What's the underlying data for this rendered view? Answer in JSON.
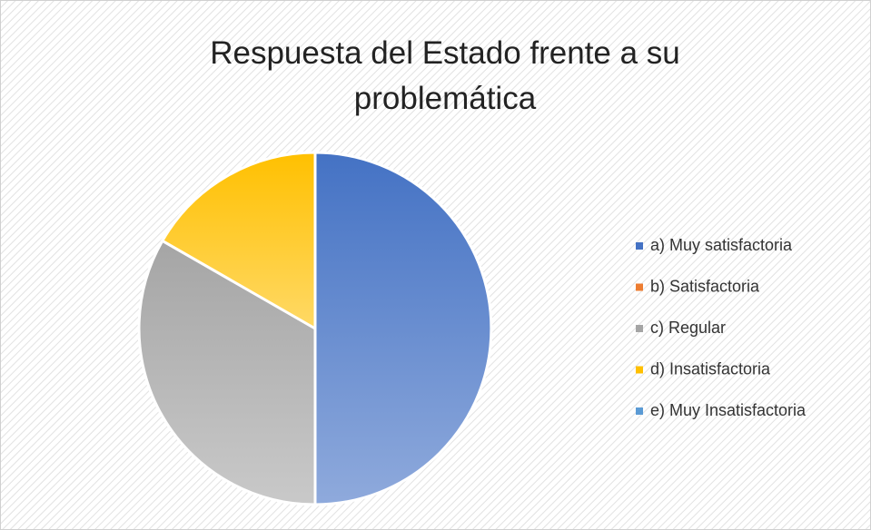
{
  "chart_data": {
    "type": "pie",
    "title": "Respuesta del Estado frente a su problemática",
    "categories": [
      "a) Muy satisfactoria",
      "b) Satisfactoria",
      "c) Regular",
      "d) Insatisfactoria",
      "e) Muy Insatisfactoria"
    ],
    "values": [
      50,
      0,
      33.3,
      16.7,
      0
    ],
    "colors": [
      "#4472c4",
      "#ed7d31",
      "#a5a5a5",
      "#ffc000",
      "#5b9bd5"
    ],
    "legend": "right"
  }
}
